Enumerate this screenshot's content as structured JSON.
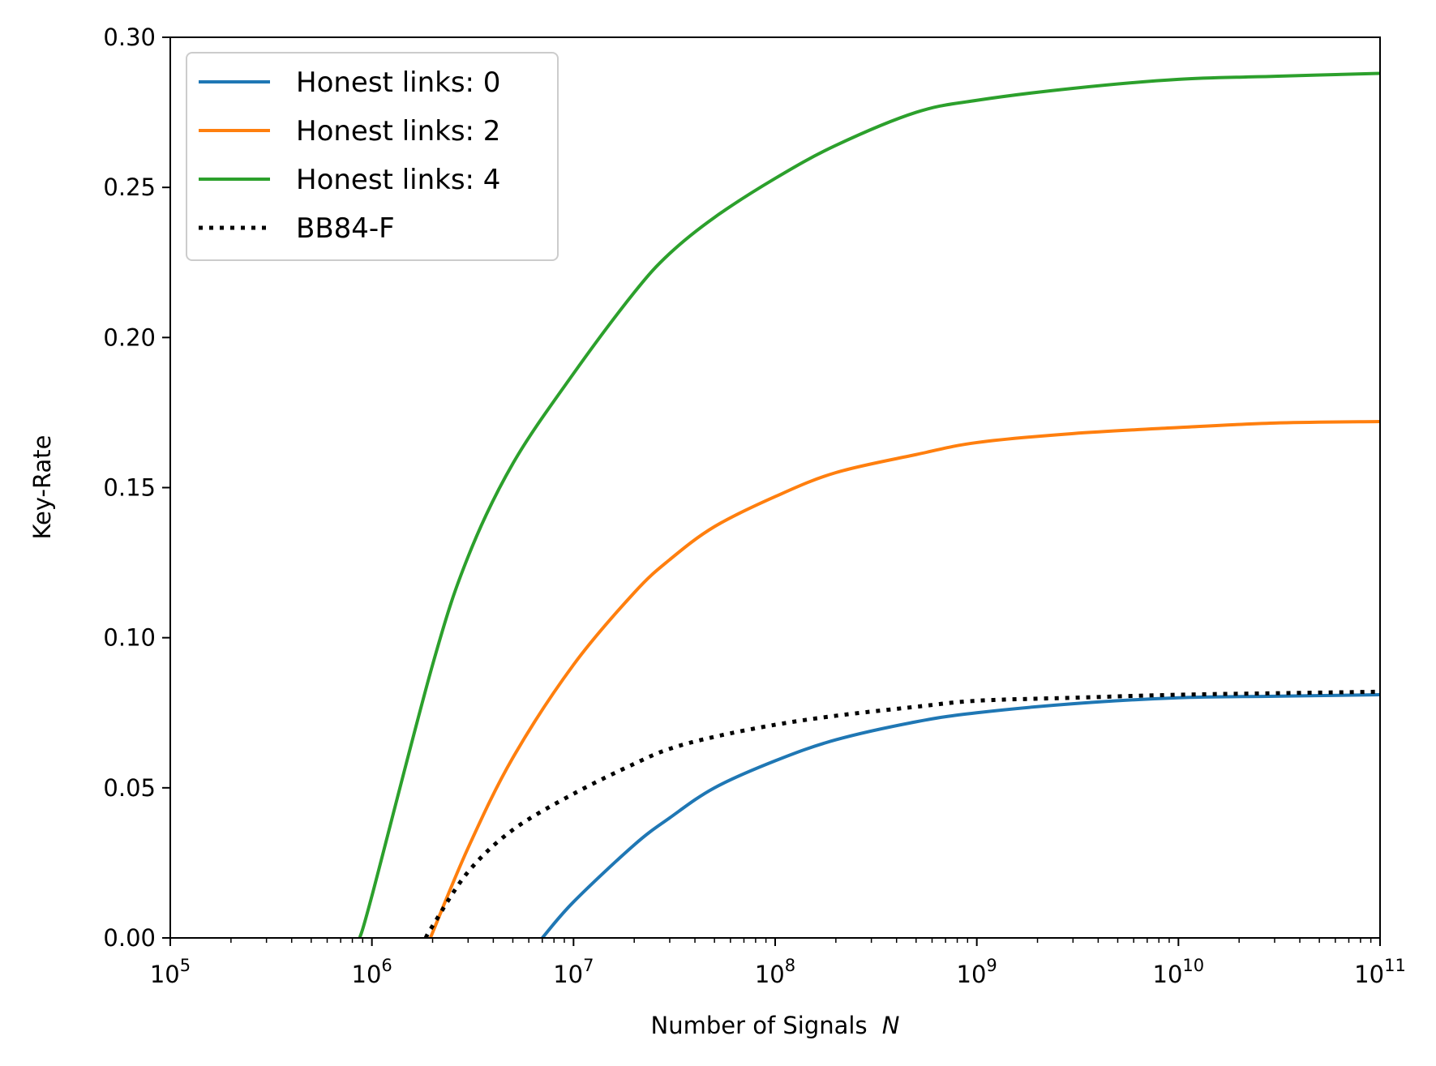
{
  "chart_data": {
    "type": "line",
    "title": "",
    "xlabel": "Number of Signals",
    "xlabel_var": "N",
    "ylabel": "Key-Rate",
    "xscale": "log",
    "xlim": [
      100000,
      100000000000
    ],
    "ylim": [
      0,
      0.3
    ],
    "grid": false,
    "legend_position": "top-left",
    "x_ticks": [
      {
        "value": 100000,
        "base": "10",
        "exp": "5"
      },
      {
        "value": 1000000,
        "base": "10",
        "exp": "6"
      },
      {
        "value": 10000000,
        "base": "10",
        "exp": "7"
      },
      {
        "value": 100000000,
        "base": "10",
        "exp": "8"
      },
      {
        "value": 1000000000,
        "base": "10",
        "exp": "9"
      },
      {
        "value": 10000000000,
        "base": "10",
        "exp": "10"
      },
      {
        "value": 100000000000,
        "base": "10",
        "exp": "11"
      }
    ],
    "y_ticks": [
      {
        "value": 0.0,
        "label": "0.00"
      },
      {
        "value": 0.05,
        "label": "0.05"
      },
      {
        "value": 0.1,
        "label": "0.10"
      },
      {
        "value": 0.15,
        "label": "0.15"
      },
      {
        "value": 0.2,
        "label": "0.20"
      },
      {
        "value": 0.25,
        "label": "0.25"
      },
      {
        "value": 0.3,
        "label": "0.30"
      }
    ],
    "series": [
      {
        "name": "Honest links: 0",
        "color": "#1f77b4",
        "style": "solid",
        "x": [
          7000000,
          10000000,
          20000000,
          30000000,
          50000000,
          100000000,
          200000000,
          500000000,
          1000000000,
          3000000000,
          10000000000,
          30000000000,
          100000000000
        ],
        "y": [
          0.0,
          0.012,
          0.031,
          0.04,
          0.05,
          0.059,
          0.066,
          0.072,
          0.075,
          0.078,
          0.08,
          0.0805,
          0.081
        ]
      },
      {
        "name": "Honest links: 2",
        "color": "#ff7f0e",
        "style": "solid",
        "x": [
          1950000,
          3000000,
          5000000,
          10000000,
          20000000,
          30000000,
          50000000,
          100000000,
          200000000,
          500000000,
          1000000000,
          3000000000,
          10000000000,
          30000000000,
          100000000000
        ],
        "y": [
          0.0,
          0.03,
          0.06,
          0.091,
          0.115,
          0.126,
          0.137,
          0.147,
          0.155,
          0.161,
          0.165,
          0.168,
          0.17,
          0.1715,
          0.172
        ]
      },
      {
        "name": "Honest links: 4",
        "color": "#2ca02c",
        "style": "solid",
        "x": [
          870000,
          1000000,
          2000000,
          3000000,
          5000000,
          10000000,
          20000000,
          30000000,
          50000000,
          100000000,
          200000000,
          500000000,
          1000000000,
          3000000000,
          10000000000,
          30000000000,
          100000000000
        ],
        "y": [
          0.0,
          0.014,
          0.091,
          0.127,
          0.158,
          0.188,
          0.215,
          0.228,
          0.24,
          0.253,
          0.264,
          0.275,
          0.279,
          0.283,
          0.286,
          0.287,
          0.288
        ]
      },
      {
        "name": "BB84-F",
        "color": "#000000",
        "style": "dotted",
        "x": [
          1850000,
          2000000,
          3000000,
          5000000,
          10000000,
          20000000,
          30000000,
          50000000,
          100000000,
          200000000,
          500000000,
          1000000000,
          3000000000,
          10000000000,
          30000000000,
          100000000000
        ],
        "y": [
          0.0,
          0.004,
          0.022,
          0.036,
          0.048,
          0.058,
          0.063,
          0.067,
          0.071,
          0.074,
          0.077,
          0.079,
          0.08,
          0.081,
          0.0815,
          0.082
        ]
      }
    ]
  }
}
